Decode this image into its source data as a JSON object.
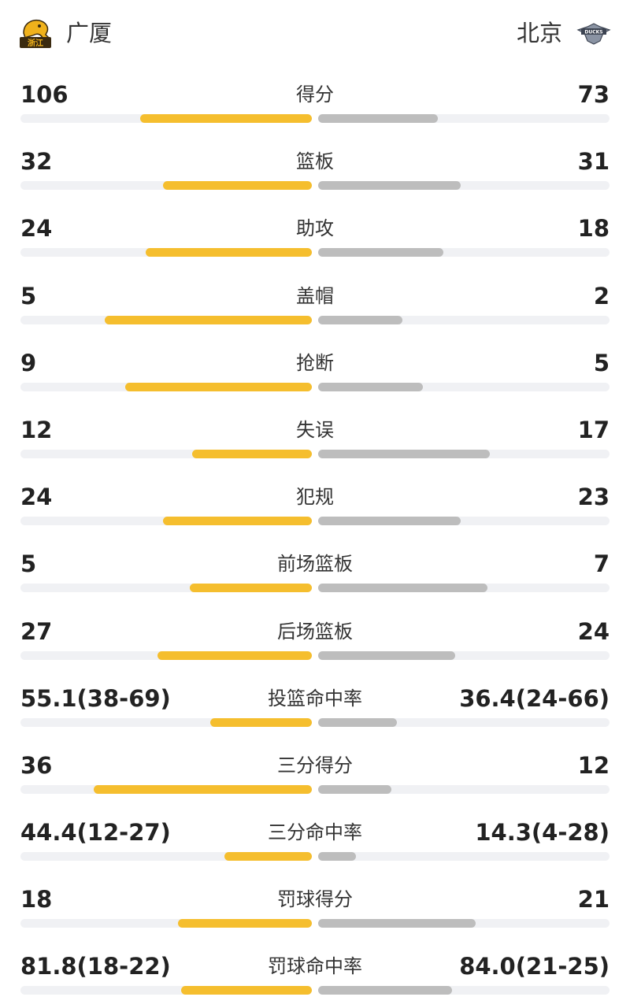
{
  "home": {
    "name": "广厦",
    "logo_icon": "tiger-logo-icon",
    "logo_text": "浙江",
    "color": "#f5be2e"
  },
  "away": {
    "name": "北京",
    "logo_icon": "ducks-logo-icon",
    "logo_text": "DUCKS",
    "color": "#bdbdbd"
  },
  "stats": [
    {
      "label": "得分",
      "home": "106",
      "away": "73",
      "home_fill": 0.59,
      "away_fill": 0.41
    },
    {
      "label": "篮板",
      "home": "32",
      "away": "31",
      "home_fill": 0.51,
      "away_fill": 0.49
    },
    {
      "label": "助攻",
      "home": "24",
      "away": "18",
      "home_fill": 0.57,
      "away_fill": 0.43
    },
    {
      "label": "盖帽",
      "home": "5",
      "away": "2",
      "home_fill": 0.71,
      "away_fill": 0.29
    },
    {
      "label": "抢断",
      "home": "9",
      "away": "5",
      "home_fill": 0.64,
      "away_fill": 0.36
    },
    {
      "label": "失误",
      "home": "12",
      "away": "17",
      "home_fill": 0.41,
      "away_fill": 0.59
    },
    {
      "label": "犯规",
      "home": "24",
      "away": "23",
      "home_fill": 0.51,
      "away_fill": 0.49
    },
    {
      "label": "前场篮板",
      "home": "5",
      "away": "7",
      "home_fill": 0.42,
      "away_fill": 0.58
    },
    {
      "label": "后场篮板",
      "home": "27",
      "away": "24",
      "home_fill": 0.53,
      "away_fill": 0.47
    },
    {
      "label": "投篮命中率",
      "home": "55.1(38-69)",
      "away": "36.4(24-66)",
      "home_fill": 0.35,
      "away_fill": 0.27
    },
    {
      "label": "三分得分",
      "home": "36",
      "away": "12",
      "home_fill": 0.75,
      "away_fill": 0.25
    },
    {
      "label": "三分命中率",
      "home": "44.4(12-27)",
      "away": "14.3(4-28)",
      "home_fill": 0.3,
      "away_fill": 0.13
    },
    {
      "label": "罚球得分",
      "home": "18",
      "away": "21",
      "home_fill": 0.46,
      "away_fill": 0.54
    },
    {
      "label": "罚球命中率",
      "home": "81.8(18-22)",
      "away": "84.0(21-25)",
      "home_fill": 0.45,
      "away_fill": 0.46
    }
  ]
}
